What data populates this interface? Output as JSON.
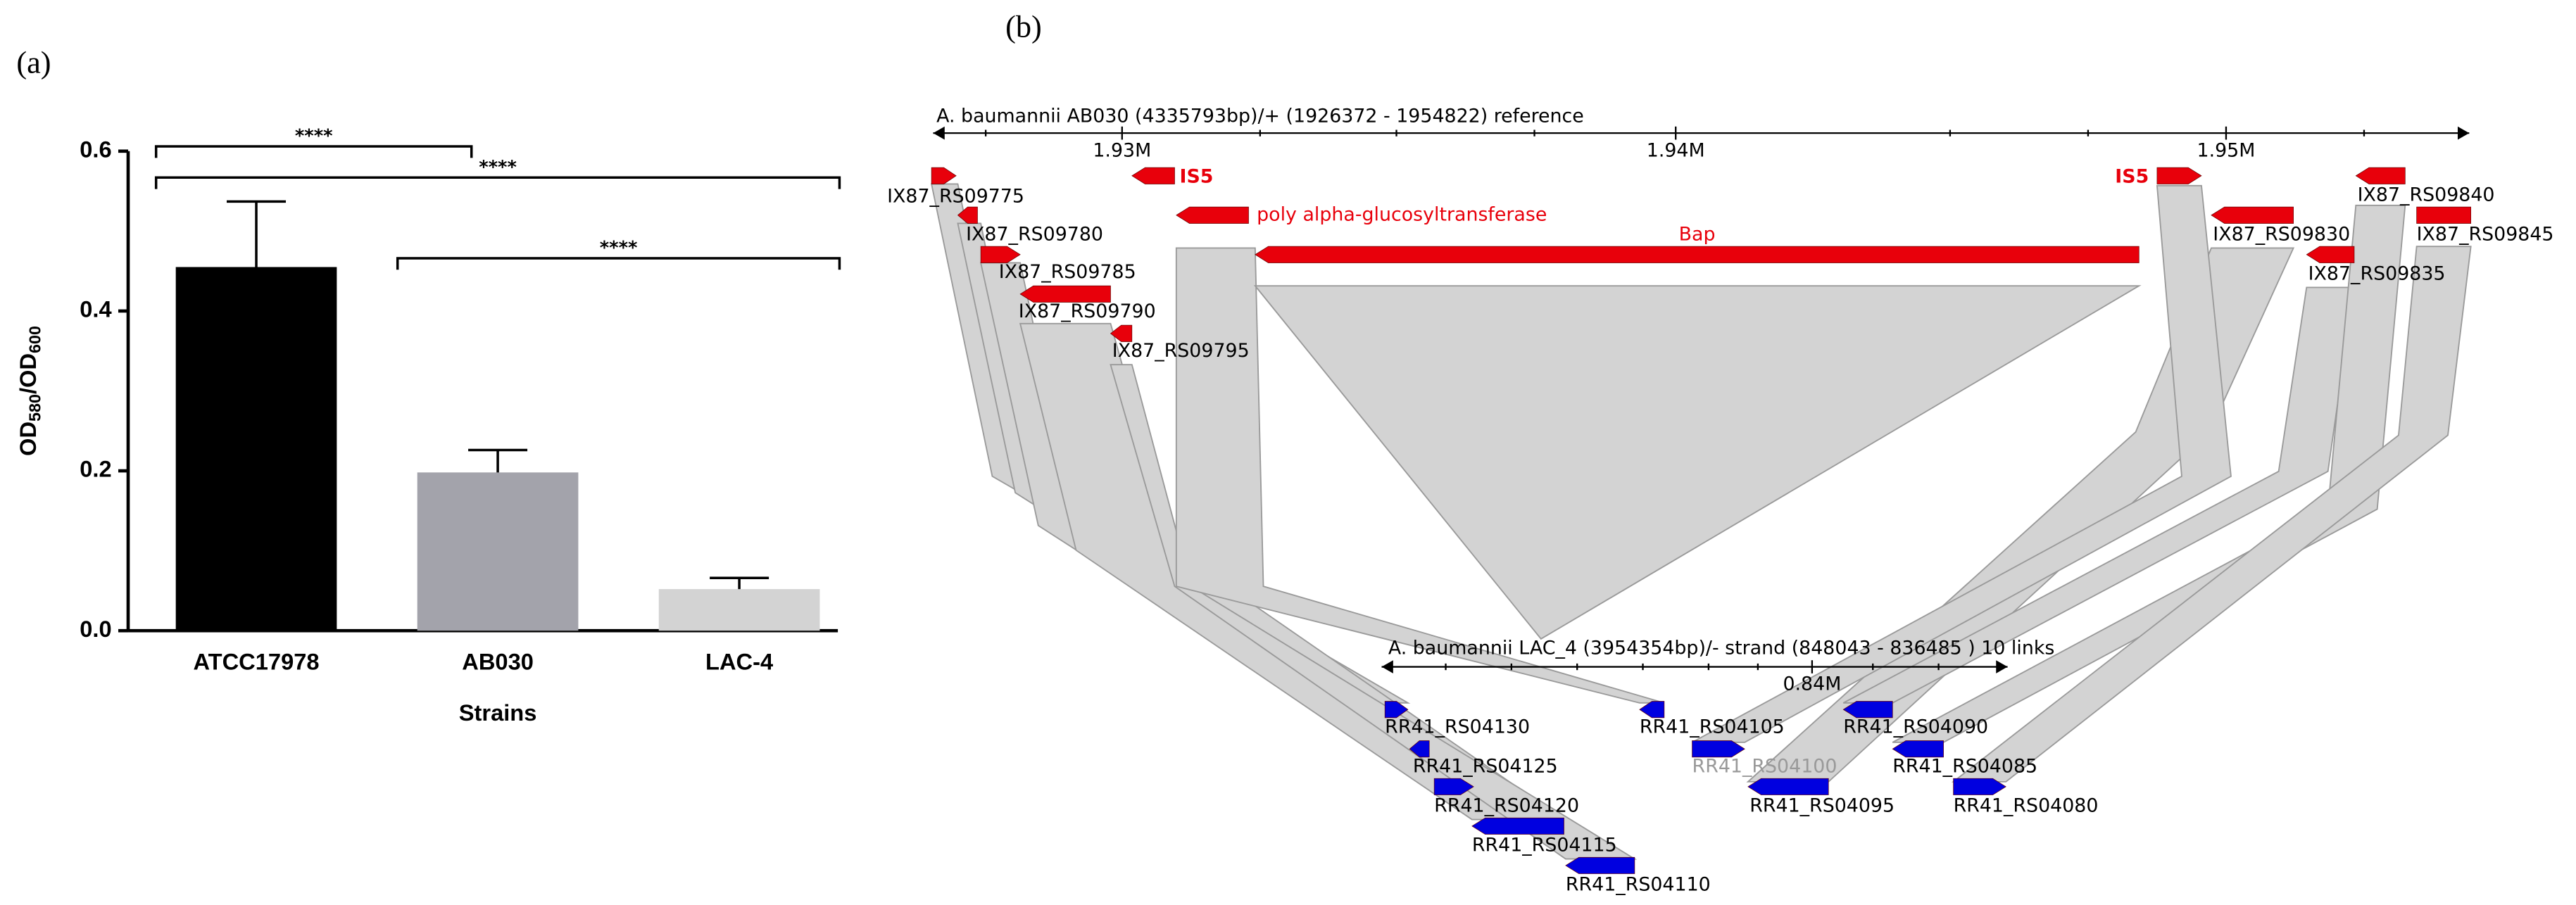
{
  "panel_labels": [
    "(a)",
    "(b)"
  ],
  "chart_data": {
    "type": "bar",
    "categories": [
      "ATCC17978",
      "AB030",
      "LAC-4"
    ],
    "values": [
      0.455,
      0.198,
      0.052
    ],
    "errors": [
      0.082,
      0.028,
      0.014
    ],
    "colors": [
      "#000000",
      "#a3a3ab",
      "#d3d3d3"
    ],
    "ylim": [
      0,
      0.6
    ],
    "yticks": [
      {
        "value": 0,
        "label": "0.0"
      },
      0.2,
      0.4,
      0.6
    ],
    "x_label": "Strains",
    "y_label_parts": [
      "OD",
      "580",
      "/OD",
      "600"
    ],
    "annotations": [
      {
        "label": "****",
        "from": 0,
        "to": 1,
        "y": 0.606
      },
      {
        "label": "****",
        "from": 0,
        "to": 2,
        "y": 0.567
      },
      {
        "label": "****",
        "from": 1,
        "to": 2,
        "y": 0.466
      }
    ]
  },
  "genome_map": {
    "top_track": {
      "title": "A. baumannii AB030 (4335793bp)/+ (1926372 - 1954822) reference",
      "ticks": [
        "1.93M",
        "1.94M",
        "1.95M"
      ],
      "genes": [
        "IX87_RS09775",
        "IX87_RS09780",
        "IX87_RS09785",
        "IX87_RS09790",
        "IX87_RS09795",
        "IS5",
        "poly alpha-glucosyltransferase",
        "Bap",
        "IS5",
        "IX87_RS09830",
        "IX87_RS09835",
        "IX87_RS09840",
        "IX87_RS09845"
      ]
    },
    "bottom_track": {
      "title": "A. baumannii LAC_4 (3954354bp)/- strand (848043 - 836485 ) 10 links",
      "ticks": [
        "0.84M"
      ],
      "genes": [
        "RR41_RS04130",
        "RR41_RS04125",
        "RR41_RS04120",
        "RR41_RS04115",
        "RR41_RS04110",
        "RR41_RS04105",
        "RR41_RS04100",
        "RR41_RS04095",
        "RR41_RS04090",
        "RR41_RS04085",
        "RR41_RS04080"
      ]
    }
  }
}
